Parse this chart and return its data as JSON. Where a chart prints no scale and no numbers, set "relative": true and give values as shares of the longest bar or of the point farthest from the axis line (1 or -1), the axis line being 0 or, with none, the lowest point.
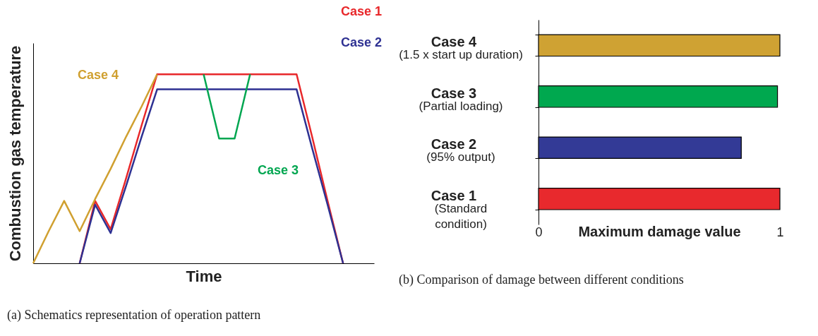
{
  "chart_data": [
    {
      "type": "line",
      "relative": true,
      "xlabel": "Time",
      "ylabel": "Combustion gas temperature",
      "categories": [
        null,
        null,
        null,
        null,
        null,
        null,
        null,
        null,
        null,
        null,
        null,
        null,
        null,
        null,
        null,
        null,
        null,
        null,
        null,
        null,
        null,
        null,
        null
      ],
      "series": [
        {
          "name": "Case 1",
          "color": "#e8272a",
          "values": [
            null,
            null,
            null,
            0,
            0.33,
            0.18,
            0.45,
            0.73,
            1,
            1,
            1,
            1,
            1,
            1,
            1,
            1,
            1,
            1,
            0.67,
            0.33,
            0,
            null,
            null
          ]
        },
        {
          "name": "Case 2",
          "color": "#2e3192",
          "values": [
            null,
            null,
            null,
            0,
            0.31,
            0.16,
            0.41,
            0.67,
            0.92,
            0.92,
            0.92,
            0.92,
            0.92,
            0.92,
            0.92,
            0.92,
            0.92,
            0.92,
            0.61,
            0.31,
            0,
            null,
            null
          ]
        },
        {
          "name": "Case 3",
          "color": "#00a650",
          "values": [
            null,
            null,
            null,
            null,
            null,
            null,
            null,
            null,
            null,
            null,
            null,
            1,
            0.66,
            0.66,
            1,
            null,
            null,
            null,
            null,
            null,
            null,
            null,
            null
          ]
        },
        {
          "name": "Case 4",
          "color": "#d0a030",
          "values": [
            0,
            0.17,
            0.33,
            0.17,
            0.34,
            0.5,
            0.67,
            0.83,
            1,
            null,
            null,
            null,
            null,
            null,
            null,
            null,
            null,
            null,
            null,
            null,
            null,
            null,
            null
          ]
        }
      ],
      "annotations": [
        "(a) Schematics representation of operation pattern"
      ]
    },
    {
      "type": "bar",
      "orientation": "horizontal",
      "xlabel": "Maximum damage value",
      "categories": [
        "Case 4\n(1.5 x start up duration)",
        "Case 3\n(Partial loading)",
        "Case 2\n(95% output)",
        "Case 1\n(Standard\ncondition)"
      ],
      "values": [
        1,
        0.99,
        0.84,
        1
      ],
      "colors": [
        "#cfa233",
        "#00a84f",
        "#333a96",
        "#e8292d"
      ],
      "xlim": [
        0,
        1
      ],
      "xticks": [
        {
          "value": 0,
          "label": "0"
        },
        {
          "value": 1,
          "label": "1"
        }
      ],
      "annotations": [
        "(b) Comparison of damage between different conditions"
      ]
    }
  ]
}
